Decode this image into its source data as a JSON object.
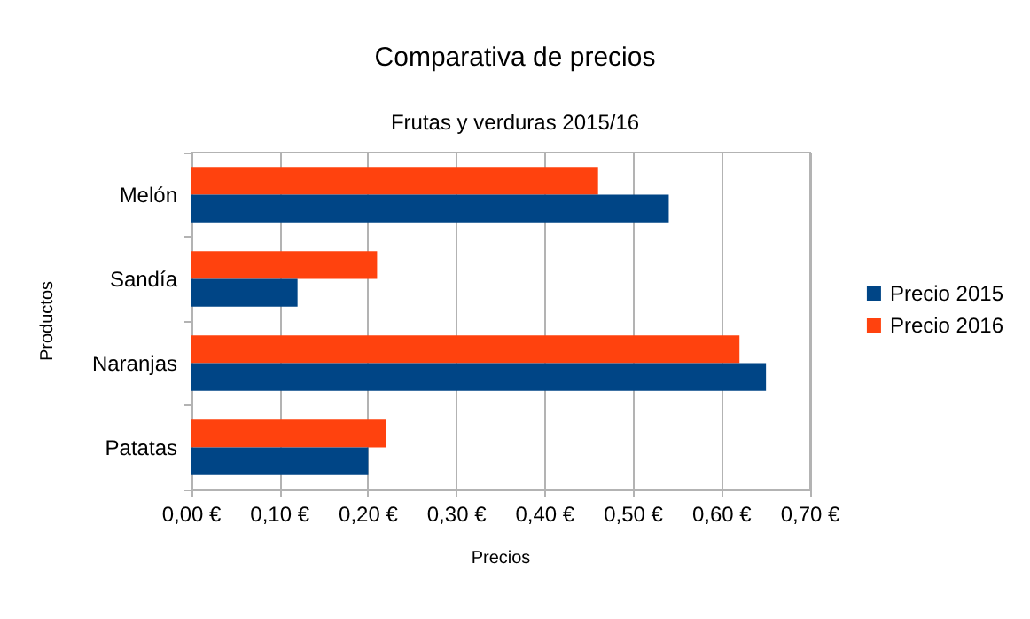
{
  "chart_data": {
    "type": "bar",
    "orientation": "horizontal",
    "title": "Comparativa de precios",
    "subtitle": "Frutas y verduras 2015/16",
    "xlabel": "Precios",
    "ylabel": "Productos",
    "categories": [
      "Melón",
      "Sandía",
      "Naranjas",
      "Patatas"
    ],
    "series": [
      {
        "name": "Precio 2015",
        "color": "#004586",
        "values": [
          0.54,
          0.12,
          0.65,
          0.2
        ]
      },
      {
        "name": "Precio 2016",
        "color": "#ff420e",
        "values": [
          0.46,
          0.21,
          0.62,
          0.22
        ]
      }
    ],
    "xlim": [
      0,
      0.7
    ],
    "xticks": [
      {
        "value": 0,
        "label": "0,00 €"
      },
      {
        "value": 0.1,
        "label": "0,10 €"
      },
      {
        "value": 0.2,
        "label": "0,20 €"
      },
      {
        "value": 0.3,
        "label": "0,30 €"
      },
      {
        "value": 0.4,
        "label": "0,40 €"
      },
      {
        "value": 0.5,
        "label": "0,50 €"
      },
      {
        "value": 0.6,
        "label": "0,60 €"
      },
      {
        "value": 0.7,
        "label": "0,70 €"
      }
    ],
    "grid": "x",
    "legend": "right"
  }
}
